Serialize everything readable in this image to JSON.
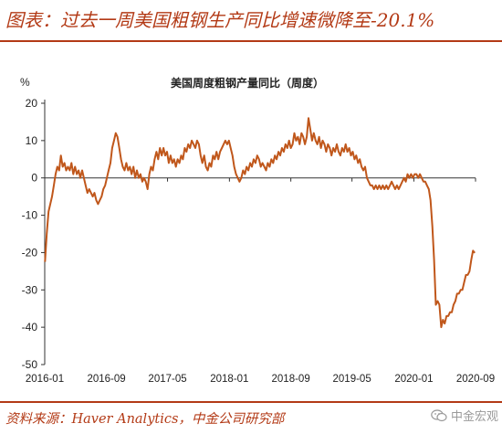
{
  "figure_title": "图表：过去一周美国粗钢生产同比增速微降至-20.1%",
  "source": "资料来源：Haver Analytics，中金公司研究部",
  "watermark": "中金宏观",
  "colors": {
    "accent": "#b33a16",
    "line": "#c0571b"
  },
  "chart_data": {
    "type": "line",
    "title": "美国周度粗钢产量同比（周度）",
    "unit_label": "%",
    "ylim": [
      -50,
      20
    ],
    "yticks": [
      20,
      10,
      0,
      -10,
      -20,
      -30,
      -40,
      -50
    ],
    "xlim": [
      "2016-01",
      "2020-09"
    ],
    "xticks": [
      "2016-01",
      "2016-09",
      "2017-05",
      "2018-01",
      "2018-09",
      "2019-05",
      "2020-01",
      "2020-09"
    ],
    "grid": false,
    "series": [
      {
        "points": [
          [
            "2016-01-02",
            -22.5
          ],
          [
            "2016-01-09",
            -15
          ],
          [
            "2016-01-16",
            -9
          ],
          [
            "2016-01-23",
            -7
          ],
          [
            "2016-01-30",
            -5
          ],
          [
            "2016-02-06",
            -2
          ],
          [
            "2016-02-13",
            1
          ],
          [
            "2016-02-20",
            3
          ],
          [
            "2016-02-27",
            2
          ],
          [
            "2016-03-05",
            6
          ],
          [
            "2016-03-12",
            3
          ],
          [
            "2016-03-19",
            4
          ],
          [
            "2016-03-26",
            2
          ],
          [
            "2016-04-02",
            3
          ],
          [
            "2016-04-09",
            2
          ],
          [
            "2016-04-16",
            4
          ],
          [
            "2016-04-23",
            1
          ],
          [
            "2016-04-30",
            3
          ],
          [
            "2016-05-07",
            1
          ],
          [
            "2016-05-14",
            2
          ],
          [
            "2016-05-21",
            0
          ],
          [
            "2016-05-28",
            2
          ],
          [
            "2016-06-04",
            0
          ],
          [
            "2016-06-11",
            -2
          ],
          [
            "2016-06-18",
            -4
          ],
          [
            "2016-06-25",
            -3
          ],
          [
            "2016-07-02",
            -4
          ],
          [
            "2016-07-09",
            -5
          ],
          [
            "2016-07-16",
            -4
          ],
          [
            "2016-07-23",
            -6
          ],
          [
            "2016-07-30",
            -7
          ],
          [
            "2016-08-06",
            -6
          ],
          [
            "2016-08-13",
            -5
          ],
          [
            "2016-08-20",
            -3
          ],
          [
            "2016-08-27",
            -2
          ],
          [
            "2016-09-03",
            0
          ],
          [
            "2016-09-10",
            2
          ],
          [
            "2016-09-17",
            4
          ],
          [
            "2016-09-24",
            8
          ],
          [
            "2016-10-01",
            10
          ],
          [
            "2016-10-08",
            12
          ],
          [
            "2016-10-15",
            11
          ],
          [
            "2016-10-22",
            8
          ],
          [
            "2016-10-29",
            5
          ],
          [
            "2016-11-05",
            3
          ],
          [
            "2016-11-12",
            2
          ],
          [
            "2016-11-19",
            4
          ],
          [
            "2016-11-26",
            2
          ],
          [
            "2016-12-03",
            3
          ],
          [
            "2016-12-10",
            1
          ],
          [
            "2016-12-17",
            3
          ],
          [
            "2016-12-24",
            0
          ],
          [
            "2016-12-31",
            2
          ],
          [
            "2017-01-07",
            0
          ],
          [
            "2017-01-14",
            1
          ],
          [
            "2017-01-21",
            -1
          ],
          [
            "2017-01-28",
            0
          ],
          [
            "2017-02-04",
            -1
          ],
          [
            "2017-02-11",
            -3
          ],
          [
            "2017-02-18",
            1
          ],
          [
            "2017-02-25",
            3
          ],
          [
            "2017-03-04",
            2
          ],
          [
            "2017-03-11",
            5
          ],
          [
            "2017-03-18",
            7
          ],
          [
            "2017-03-25",
            5
          ],
          [
            "2017-04-01",
            8
          ],
          [
            "2017-04-08",
            6
          ],
          [
            "2017-04-15",
            8
          ],
          [
            "2017-04-22",
            6
          ],
          [
            "2017-04-29",
            7
          ],
          [
            "2017-05-06",
            4
          ],
          [
            "2017-05-13",
            6
          ],
          [
            "2017-05-20",
            4
          ],
          [
            "2017-05-27",
            5
          ],
          [
            "2017-06-03",
            3
          ],
          [
            "2017-06-10",
            5
          ],
          [
            "2017-06-17",
            4
          ],
          [
            "2017-06-24",
            6
          ],
          [
            "2017-07-01",
            5
          ],
          [
            "2017-07-08",
            8
          ],
          [
            "2017-07-15",
            7
          ],
          [
            "2017-07-22",
            9
          ],
          [
            "2017-07-29",
            8
          ],
          [
            "2017-08-05",
            10
          ],
          [
            "2017-08-12",
            9
          ],
          [
            "2017-08-19",
            8
          ],
          [
            "2017-08-26",
            10
          ],
          [
            "2017-09-02",
            9
          ],
          [
            "2017-09-09",
            6
          ],
          [
            "2017-09-16",
            4
          ],
          [
            "2017-09-23",
            6
          ],
          [
            "2017-09-30",
            3
          ],
          [
            "2017-10-07",
            2
          ],
          [
            "2017-10-14",
            4
          ],
          [
            "2017-10-21",
            3
          ],
          [
            "2017-10-28",
            6
          ],
          [
            "2017-11-04",
            5
          ],
          [
            "2017-11-11",
            7
          ],
          [
            "2017-11-18",
            5
          ],
          [
            "2017-11-25",
            7
          ],
          [
            "2017-12-02",
            8
          ],
          [
            "2017-12-09",
            9
          ],
          [
            "2017-12-16",
            10
          ],
          [
            "2017-12-23",
            9
          ],
          [
            "2017-12-30",
            10
          ],
          [
            "2018-01-06",
            8
          ],
          [
            "2018-01-13",
            6
          ],
          [
            "2018-01-20",
            3
          ],
          [
            "2018-01-27",
            1
          ],
          [
            "2018-02-03",
            0
          ],
          [
            "2018-02-10",
            -1
          ],
          [
            "2018-02-17",
            0
          ],
          [
            "2018-02-24",
            2
          ],
          [
            "2018-03-03",
            1
          ],
          [
            "2018-03-10",
            3
          ],
          [
            "2018-03-17",
            2
          ],
          [
            "2018-03-24",
            4
          ],
          [
            "2018-03-31",
            3
          ],
          [
            "2018-04-07",
            5
          ],
          [
            "2018-04-14",
            4
          ],
          [
            "2018-04-21",
            6
          ],
          [
            "2018-04-28",
            5
          ],
          [
            "2018-05-05",
            3
          ],
          [
            "2018-05-12",
            4
          ],
          [
            "2018-05-19",
            3
          ],
          [
            "2018-05-26",
            2
          ],
          [
            "2018-06-02",
            4
          ],
          [
            "2018-06-09",
            3
          ],
          [
            "2018-06-16",
            5
          ],
          [
            "2018-06-23",
            4
          ],
          [
            "2018-06-30",
            6
          ],
          [
            "2018-07-07",
            5
          ],
          [
            "2018-07-14",
            7
          ],
          [
            "2018-07-21",
            6
          ],
          [
            "2018-07-28",
            8
          ],
          [
            "2018-08-04",
            7
          ],
          [
            "2018-08-11",
            9
          ],
          [
            "2018-08-18",
            8
          ],
          [
            "2018-08-25",
            10
          ],
          [
            "2018-09-01",
            8
          ],
          [
            "2018-09-08",
            9
          ],
          [
            "2018-09-15",
            12
          ],
          [
            "2018-09-22",
            10
          ],
          [
            "2018-09-29",
            11
          ],
          [
            "2018-10-06",
            9
          ],
          [
            "2018-10-13",
            12
          ],
          [
            "2018-10-20",
            11
          ],
          [
            "2018-10-27",
            9
          ],
          [
            "2018-11-03",
            11
          ],
          [
            "2018-11-10",
            16
          ],
          [
            "2018-11-17",
            13
          ],
          [
            "2018-11-24",
            10
          ],
          [
            "2018-12-01",
            12
          ],
          [
            "2018-12-08",
            10
          ],
          [
            "2018-12-15",
            9
          ],
          [
            "2018-12-22",
            11
          ],
          [
            "2018-12-29",
            8
          ],
          [
            "2019-01-05",
            10
          ],
          [
            "2019-01-12",
            9
          ],
          [
            "2019-01-19",
            7
          ],
          [
            "2019-01-26",
            9
          ],
          [
            "2019-02-02",
            8
          ],
          [
            "2019-02-09",
            6
          ],
          [
            "2019-02-16",
            8
          ],
          [
            "2019-02-23",
            7
          ],
          [
            "2019-03-02",
            9
          ],
          [
            "2019-03-09",
            7
          ],
          [
            "2019-03-16",
            6
          ],
          [
            "2019-03-23",
            8
          ],
          [
            "2019-03-30",
            7
          ],
          [
            "2019-04-06",
            9
          ],
          [
            "2019-04-13",
            7
          ],
          [
            "2019-04-20",
            8
          ],
          [
            "2019-04-27",
            6
          ],
          [
            "2019-05-04",
            7
          ],
          [
            "2019-05-11",
            5
          ],
          [
            "2019-05-18",
            6
          ],
          [
            "2019-05-25",
            4
          ],
          [
            "2019-06-01",
            5
          ],
          [
            "2019-06-08",
            3
          ],
          [
            "2019-06-15",
            2
          ],
          [
            "2019-06-22",
            3
          ],
          [
            "2019-06-29",
            0
          ],
          [
            "2019-07-06",
            -1
          ],
          [
            "2019-07-13",
            -2
          ],
          [
            "2019-07-20",
            -2
          ],
          [
            "2019-07-27",
            -3
          ],
          [
            "2019-08-03",
            -2
          ],
          [
            "2019-08-10",
            -3
          ],
          [
            "2019-08-17",
            -2
          ],
          [
            "2019-08-24",
            -3
          ],
          [
            "2019-08-31",
            -2
          ],
          [
            "2019-09-07",
            -3
          ],
          [
            "2019-09-14",
            -2
          ],
          [
            "2019-09-21",
            -3
          ],
          [
            "2019-09-28",
            -2
          ],
          [
            "2019-10-05",
            -1
          ],
          [
            "2019-10-12",
            -2
          ],
          [
            "2019-10-19",
            -3
          ],
          [
            "2019-10-26",
            -2
          ],
          [
            "2019-11-02",
            -3
          ],
          [
            "2019-11-09",
            -2
          ],
          [
            "2019-11-16",
            -1
          ],
          [
            "2019-11-23",
            0
          ],
          [
            "2019-11-30",
            -1
          ],
          [
            "2019-12-07",
            1
          ],
          [
            "2019-12-14",
            0
          ],
          [
            "2019-12-21",
            1
          ],
          [
            "2019-12-28",
            0
          ],
          [
            "2020-01-04",
            1
          ],
          [
            "2020-01-11",
            1
          ],
          [
            "2020-01-18",
            0
          ],
          [
            "2020-01-25",
            1
          ],
          [
            "2020-02-01",
            0
          ],
          [
            "2020-02-08",
            -1
          ],
          [
            "2020-02-15",
            -1
          ],
          [
            "2020-02-22",
            -2
          ],
          [
            "2020-02-29",
            -3
          ],
          [
            "2020-03-07",
            -6
          ],
          [
            "2020-03-14",
            -13
          ],
          [
            "2020-03-21",
            -22
          ],
          [
            "2020-03-28",
            -34
          ],
          [
            "2020-04-04",
            -33
          ],
          [
            "2020-04-11",
            -34
          ],
          [
            "2020-04-18",
            -40
          ],
          [
            "2020-04-25",
            -38
          ],
          [
            "2020-05-02",
            -39
          ],
          [
            "2020-05-09",
            -37
          ],
          [
            "2020-05-16",
            -37
          ],
          [
            "2020-05-23",
            -36
          ],
          [
            "2020-05-30",
            -36
          ],
          [
            "2020-06-06",
            -34
          ],
          [
            "2020-06-13",
            -33
          ],
          [
            "2020-06-20",
            -31
          ],
          [
            "2020-06-27",
            -31
          ],
          [
            "2020-07-04",
            -30
          ],
          [
            "2020-07-11",
            -30
          ],
          [
            "2020-07-18",
            -28
          ],
          [
            "2020-07-25",
            -26
          ],
          [
            "2020-08-01",
            -26
          ],
          [
            "2020-08-08",
            -25
          ],
          [
            "2020-08-15",
            -22
          ],
          [
            "2020-08-22",
            -19.5
          ],
          [
            "2020-08-29",
            -20.1
          ]
        ]
      }
    ]
  }
}
